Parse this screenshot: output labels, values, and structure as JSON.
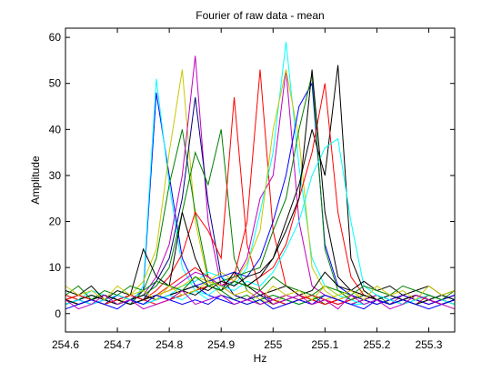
{
  "chart_data": {
    "type": "line",
    "title": "Fourier of raw data - mean",
    "xlabel": "Hz",
    "ylabel": "Amplitude",
    "xlim": [
      254.6,
      255.35
    ],
    "ylim": [
      -4,
      62
    ],
    "x_ticks": [
      254.6,
      254.7,
      254.8,
      254.9,
      255,
      255.1,
      255.2,
      255.3
    ],
    "x_tick_labels": [
      "254.6",
      "254.7",
      "254.8",
      "254.9",
      "255",
      "255.1",
      "255.2",
      "255.3"
    ],
    "y_ticks": [
      0,
      10,
      20,
      30,
      40,
      50,
      60
    ],
    "y_tick_labels": [
      "0",
      "10",
      "20",
      "30",
      "40",
      "50",
      "60"
    ],
    "grid": false,
    "legend": "none",
    "x": [
      254.6,
      254.625,
      254.65,
      254.675,
      254.7,
      254.725,
      254.75,
      254.775,
      254.8,
      254.825,
      254.85,
      254.875,
      254.9,
      254.925,
      254.95,
      254.975,
      255.0,
      255.025,
      255.05,
      255.075,
      255.1,
      255.125,
      255.15,
      255.175,
      255.2,
      255.225,
      255.25,
      255.275,
      255.3,
      255.325,
      255.35
    ],
    "series": [
      {
        "color": "#0000ff",
        "values": [
          3,
          4,
          3,
          2,
          4,
          3,
          5,
          48,
          30,
          12,
          6,
          4,
          3,
          2,
          3,
          4,
          3,
          2,
          3,
          4,
          3,
          2,
          3,
          4,
          3,
          2,
          3,
          4,
          3,
          2,
          3
        ]
      },
      {
        "color": "#00ffff",
        "values": [
          4,
          3,
          5,
          4,
          3,
          2,
          6,
          51,
          28,
          10,
          5,
          3,
          4,
          3,
          2,
          3,
          4,
          3,
          2,
          3,
          4,
          3,
          2,
          2,
          3,
          4,
          3,
          2,
          4,
          3,
          2
        ]
      },
      {
        "color": "#c8c800",
        "values": [
          2,
          3,
          4,
          3,
          2,
          4,
          7,
          14,
          35,
          53,
          20,
          7,
          4,
          3,
          2,
          3,
          2,
          4,
          3,
          2,
          3,
          4,
          3,
          5,
          3,
          2,
          3,
          2,
          3,
          4,
          3
        ]
      },
      {
        "color": "#008000",
        "values": [
          3,
          2,
          3,
          4,
          3,
          2,
          5,
          12,
          28,
          40,
          22,
          8,
          5,
          3,
          4,
          2,
          3,
          2,
          3,
          4,
          2,
          3,
          2,
          3,
          4,
          3,
          2,
          3,
          4,
          3,
          2
        ]
      },
      {
        "color": "#bf00bf",
        "values": [
          2,
          3,
          2,
          3,
          4,
          3,
          4,
          8,
          15,
          30,
          56,
          20,
          6,
          4,
          3,
          2,
          3,
          4,
          3,
          2,
          3,
          2,
          3,
          4,
          3,
          2,
          4,
          3,
          2,
          3,
          4
        ]
      },
      {
        "color": "#000080",
        "values": [
          3,
          4,
          3,
          2,
          3,
          4,
          3,
          7,
          12,
          25,
          47,
          24,
          8,
          4,
          3,
          4,
          2,
          3,
          4,
          3,
          2,
          3,
          4,
          3,
          2,
          3,
          2,
          4,
          3,
          2,
          3
        ]
      },
      {
        "color": "#008000",
        "values": [
          2,
          3,
          4,
          3,
          2,
          3,
          4,
          6,
          10,
          22,
          35,
          28,
          40,
          12,
          5,
          3,
          4,
          3,
          2,
          3,
          4,
          3,
          2,
          3,
          4,
          2,
          3,
          4,
          3,
          2,
          3
        ]
      },
      {
        "color": "#ff0000",
        "values": [
          3,
          2,
          3,
          4,
          3,
          2,
          3,
          5,
          8,
          13,
          22,
          18,
          12,
          47,
          15,
          5,
          3,
          2,
          3,
          4,
          3,
          2,
          3,
          4,
          3,
          2,
          3,
          2,
          4,
          3,
          2
        ]
      },
      {
        "color": "#ff0000",
        "values": [
          4,
          3,
          2,
          3,
          4,
          3,
          2,
          4,
          6,
          8,
          10,
          8,
          6,
          8,
          20,
          53,
          18,
          6,
          4,
          3,
          2,
          3,
          4,
          3,
          2,
          3,
          4,
          3,
          2,
          3,
          4
        ]
      },
      {
        "color": "#bf00bf",
        "values": [
          3,
          2,
          3,
          4,
          3,
          4,
          3,
          4,
          5,
          7,
          9,
          8,
          6,
          7,
          12,
          25,
          30,
          53,
          20,
          6,
          4,
          3,
          2,
          3,
          4,
          3,
          2,
          3,
          4,
          3,
          2
        ]
      },
      {
        "color": "#00ffff",
        "values": [
          2,
          3,
          4,
          3,
          2,
          3,
          4,
          3,
          4,
          6,
          7,
          9,
          8,
          6,
          10,
          22,
          35,
          59,
          32,
          12,
          6,
          4,
          3,
          2,
          3,
          4,
          3,
          2,
          3,
          4,
          3
        ]
      },
      {
        "color": "#c8c800",
        "values": [
          3,
          4,
          3,
          2,
          3,
          2,
          3,
          4,
          5,
          6,
          8,
          7,
          9,
          7,
          11,
          18,
          40,
          53,
          38,
          10,
          5,
          3,
          4,
          3,
          2,
          3,
          2,
          3,
          4,
          3,
          2
        ]
      },
      {
        "color": "#0000ff",
        "values": [
          2,
          3,
          2,
          3,
          4,
          3,
          2,
          3,
          4,
          5,
          6,
          7,
          8,
          9,
          8,
          12,
          20,
          30,
          45,
          50,
          15,
          6,
          4,
          3,
          2,
          3,
          4,
          3,
          2,
          3,
          4
        ]
      },
      {
        "color": "#008000",
        "values": [
          3,
          2,
          3,
          4,
          3,
          2,
          3,
          4,
          3,
          4,
          5,
          6,
          7,
          8,
          9,
          10,
          18,
          25,
          40,
          52,
          14,
          5,
          3,
          4,
          3,
          2,
          3,
          4,
          3,
          2,
          3
        ]
      },
      {
        "color": "#000000",
        "values": [
          2,
          3,
          4,
          3,
          2,
          3,
          4,
          3,
          4,
          5,
          6,
          5,
          7,
          6,
          8,
          9,
          12,
          20,
          28,
          40,
          30,
          54,
          12,
          5,
          3,
          4,
          3,
          2,
          3,
          4,
          3
        ]
      },
      {
        "color": "#ff0000",
        "values": [
          3,
          4,
          3,
          2,
          3,
          4,
          3,
          2,
          3,
          4,
          5,
          6,
          5,
          7,
          6,
          8,
          10,
          15,
          25,
          35,
          50,
          22,
          8,
          4,
          3,
          2,
          3,
          4,
          3,
          2,
          3
        ]
      },
      {
        "color": "#00ffff",
        "values": [
          2,
          3,
          2,
          3,
          4,
          3,
          2,
          3,
          4,
          3,
          5,
          4,
          6,
          5,
          7,
          6,
          9,
          14,
          20,
          30,
          36,
          38,
          20,
          6,
          4,
          3,
          2,
          3,
          4,
          3,
          2
        ]
      },
      {
        "color": "#000000",
        "values": [
          3,
          2,
          3,
          4,
          3,
          2,
          3,
          4,
          3,
          5,
          4,
          6,
          5,
          7,
          6,
          8,
          12,
          18,
          25,
          53,
          22,
          8,
          5,
          4,
          3,
          2,
          3,
          4,
          3,
          2,
          3
        ]
      },
      {
        "color": "#000000",
        "values": [
          5,
          4,
          6,
          3,
          5,
          4,
          14,
          8,
          6,
          22,
          12,
          6,
          5,
          9,
          6,
          4,
          5,
          6,
          4,
          5,
          9,
          6,
          5,
          7,
          5,
          6,
          4,
          5,
          6,
          4,
          5
        ]
      },
      {
        "color": "#008000",
        "values": [
          4,
          6,
          3,
          5,
          4,
          6,
          5,
          7,
          6,
          5,
          8,
          6,
          5,
          7,
          6,
          5,
          8,
          6,
          5,
          4,
          6,
          5,
          4,
          6,
          5,
          4,
          6,
          5,
          4,
          3,
          5
        ]
      },
      {
        "color": "#c8c800",
        "values": [
          6,
          4,
          5,
          3,
          6,
          4,
          5,
          3,
          6,
          4,
          5,
          7,
          6,
          4,
          5,
          3,
          6,
          4,
          5,
          3,
          6,
          4,
          5,
          3,
          6,
          4,
          5,
          3,
          6,
          4,
          5
        ]
      },
      {
        "color": "#0000ff",
        "values": [
          1,
          2,
          3,
          2,
          1,
          3,
          2,
          4,
          3,
          2,
          3,
          2,
          4,
          3,
          2,
          3,
          1,
          2,
          3,
          2,
          4,
          3,
          2,
          1,
          3,
          2,
          3,
          2,
          1,
          2,
          3
        ]
      },
      {
        "color": "#bf00bf",
        "values": [
          3,
          1,
          2,
          4,
          2,
          3,
          1,
          2,
          3,
          5,
          2,
          3,
          4,
          2,
          3,
          5,
          2,
          3,
          4,
          2,
          3,
          1,
          4,
          2,
          3,
          1,
          2,
          4,
          3,
          2,
          1
        ]
      }
    ]
  }
}
